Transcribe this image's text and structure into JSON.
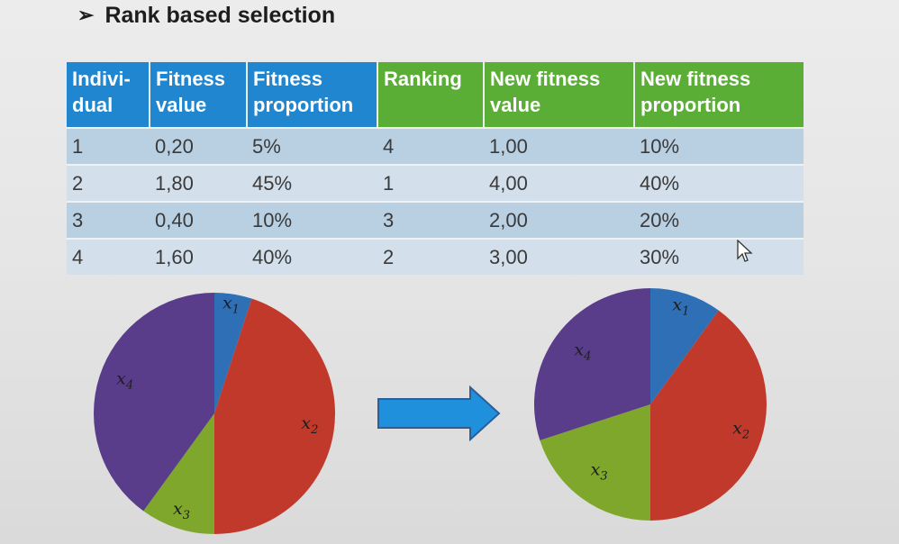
{
  "slide": {
    "bullet": "➢",
    "title": "Rank based selection"
  },
  "table": {
    "headers": [
      {
        "line1": "Indivi-",
        "line2": "dual",
        "color": "#1f86cf"
      },
      {
        "line1": "Fitness",
        "line2": "value",
        "color": "#1f86cf"
      },
      {
        "line1": "Fitness",
        "line2": "proportion",
        "color": "#1f86cf"
      },
      {
        "line1": "Ranking",
        "line2": "",
        "color": "#5aae36"
      },
      {
        "line1": "New fitness",
        "line2": "value",
        "color": "#5aae36"
      },
      {
        "line1": "New fitness",
        "line2": "proportion",
        "color": "#5aae36"
      }
    ],
    "rows": [
      [
        "1",
        "0,20",
        "5%",
        "4",
        "1,00",
        "10%"
      ],
      [
        "2",
        "1,80",
        "45%",
        "1",
        "4,00",
        "40%"
      ],
      [
        "3",
        "0,40",
        "10%",
        "3",
        "2,00",
        "20%"
      ],
      [
        "4",
        "1,60",
        "40%",
        "2",
        "3,00",
        "30%"
      ]
    ]
  },
  "chart_data": [
    {
      "type": "pie",
      "categories": [
        "x1",
        "x2",
        "x3",
        "x4"
      ],
      "values": [
        5,
        45,
        10,
        40
      ],
      "colors": [
        "#2f6fb6",
        "#c0392b",
        "#7ea72c",
        "#5a3d8a"
      ]
    },
    {
      "type": "pie",
      "categories": [
        "x1",
        "x2",
        "x3",
        "x4"
      ],
      "values": [
        10,
        40,
        20,
        30
      ],
      "colors": [
        "#2f6fb6",
        "#c0392b",
        "#7ea72c",
        "#5a3d8a"
      ]
    }
  ],
  "icons": {
    "arrow": "right-arrow-icon",
    "cursor": "mouse-pointer-icon"
  }
}
